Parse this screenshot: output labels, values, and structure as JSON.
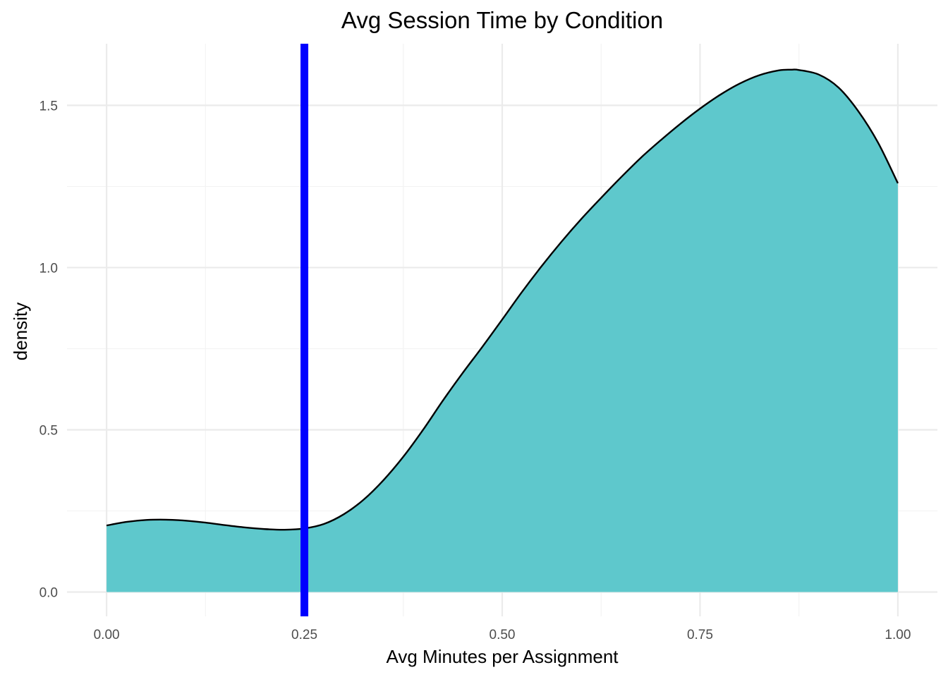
{
  "chart_data": {
    "type": "area",
    "title": "Avg Session Time by Condition",
    "xlabel": "Avg Minutes per Assignment",
    "ylabel": "density",
    "xlim": [
      -0.05,
      1.05
    ],
    "ylim": [
      -0.075,
      1.69
    ],
    "x_ticks": [
      0.0,
      0.25,
      0.5,
      0.75,
      1.0
    ],
    "x_tick_labels": [
      "0.00",
      "0.25",
      "0.50",
      "0.75",
      "1.00"
    ],
    "x_minor_ticks": [
      0.125,
      0.375,
      0.625,
      0.875
    ],
    "y_ticks": [
      0.0,
      0.5,
      1.0,
      1.5
    ],
    "y_tick_labels": [
      "0.0",
      "0.5",
      "1.0",
      "1.5"
    ],
    "y_minor_ticks": [
      0.25,
      0.75,
      1.25
    ],
    "grid": true,
    "series": [
      {
        "x": [
          0.0,
          0.025,
          0.05,
          0.075,
          0.1,
          0.125,
          0.15,
          0.175,
          0.2,
          0.225,
          0.25,
          0.275,
          0.3,
          0.325,
          0.35,
          0.375,
          0.4,
          0.425,
          0.45,
          0.475,
          0.5,
          0.525,
          0.55,
          0.575,
          0.6,
          0.625,
          0.65,
          0.675,
          0.7,
          0.725,
          0.75,
          0.775,
          0.8,
          0.825,
          0.85,
          0.865,
          0.875,
          0.9,
          0.925,
          0.95,
          0.975,
          1.0
        ],
        "values": [
          0.205,
          0.216,
          0.222,
          0.223,
          0.22,
          0.214,
          0.206,
          0.199,
          0.194,
          0.192,
          0.196,
          0.21,
          0.24,
          0.285,
          0.345,
          0.417,
          0.5,
          0.59,
          0.675,
          0.756,
          0.84,
          0.925,
          1.005,
          1.08,
          1.15,
          1.215,
          1.278,
          1.338,
          1.392,
          1.443,
          1.49,
          1.532,
          1.567,
          1.593,
          1.608,
          1.61,
          1.609,
          1.595,
          1.555,
          1.482,
          1.385,
          1.26
        ]
      }
    ],
    "reference_line": {
      "x": 0.25,
      "color": "#0000ff"
    },
    "colors": {
      "fill": "#5ec8cc",
      "outline": "#000000",
      "grid_major": "#ebebeb",
      "grid_minor": "#f3f3f3",
      "tick_text": "#4d4d4d"
    }
  }
}
